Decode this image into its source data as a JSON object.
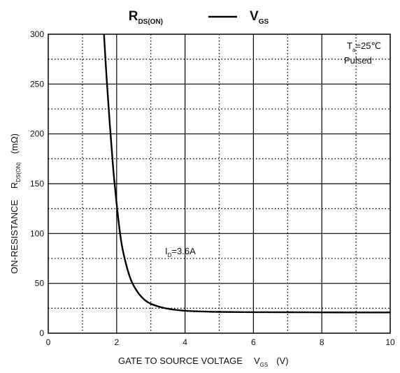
{
  "chart_data": {
    "type": "line",
    "title": {
      "left_main": "R",
      "left_sub": "DS(ON)",
      "right_main": "V",
      "right_sub": "GS"
    },
    "xlabel": {
      "text": "GATE TO SOURCE VOLTAGE",
      "var_main": "V",
      "var_sub": "GS",
      "unit": "(V)"
    },
    "ylabel": {
      "text": "ON-RESISTANCE",
      "var_main": "R",
      "var_sub": "DS(ON)",
      "unit": "(mΩ)"
    },
    "xlim": [
      0,
      10
    ],
    "ylim": [
      0,
      300
    ],
    "x_ticks": [
      0,
      2,
      4,
      6,
      8,
      10
    ],
    "y_ticks": [
      0,
      50,
      100,
      150,
      200,
      250,
      300
    ],
    "grid": {
      "major": "solid",
      "minor": "dotted",
      "x_minor_step": 1,
      "y_minor_step": 25
    },
    "series": [
      {
        "name": "",
        "color": "#000000",
        "x": [
          1.63,
          1.7,
          1.8,
          1.9,
          2.0,
          2.1,
          2.2,
          2.4,
          2.6,
          2.8,
          3.0,
          3.3,
          3.6,
          4.0,
          4.5,
          5.0,
          6.0,
          7.0,
          8.0,
          9.0,
          10.0
        ],
        "y": [
          300,
          260,
          210,
          165,
          130,
          100,
          80,
          55,
          42,
          34,
          29.5,
          26,
          24,
          22.5,
          21.8,
          21.4,
          21.1,
          21.0,
          20.9,
          20.8,
          20.8
        ]
      }
    ],
    "annotations": [
      {
        "id": "ta",
        "main": "T",
        "sub": "a",
        "rest": "=25℃"
      },
      {
        "id": "pulsed",
        "text": "Pulsed"
      },
      {
        "id": "id",
        "main": "I",
        "sub": "D",
        "rest": "=3.6A"
      }
    ]
  }
}
